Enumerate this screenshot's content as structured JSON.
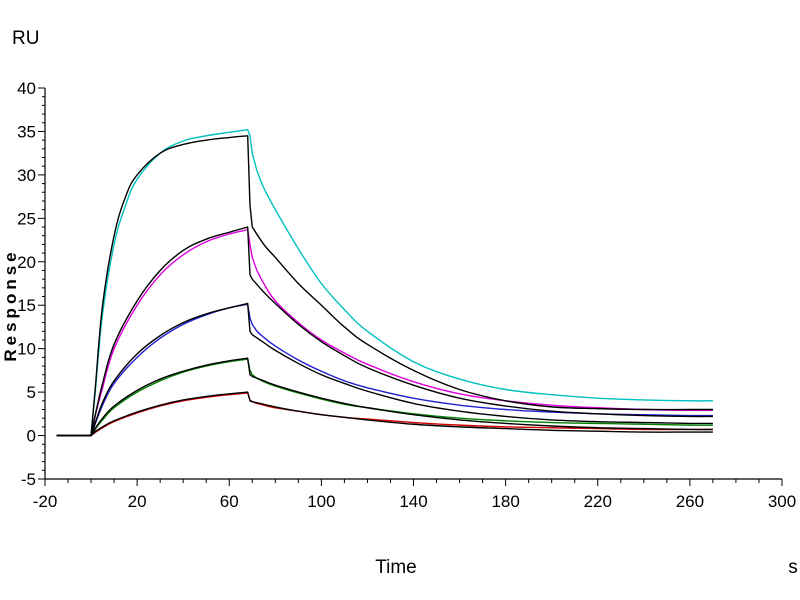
{
  "chart_data": {
    "type": "line",
    "title": "",
    "xlabel": "Time",
    "x_unit": "s",
    "ylabel": "Response",
    "y_unit": "RU",
    "xlim": [
      -20,
      300
    ],
    "ylim": [
      -5,
      40
    ],
    "x_ticks": [
      "-20",
      "20",
      "60",
      "100",
      "140",
      "180",
      "220",
      "260",
      "300"
    ],
    "y_ticks": [
      "-5",
      "0",
      "5",
      "10",
      "15",
      "20",
      "25",
      "30",
      "35",
      "40"
    ],
    "grid": false,
    "legend": "none",
    "series": [
      {
        "color": "#00c0c0",
        "role": "measured",
        "x": [
          -15,
          0,
          2,
          5,
          10,
          15,
          20,
          30,
          40,
          50,
          60,
          68,
          69,
          70,
          72,
          75,
          80,
          90,
          100,
          110,
          120,
          140,
          160,
          180,
          200,
          220,
          240,
          260,
          270
        ],
        "y": [
          0,
          0,
          5.5,
          14,
          22,
          26.5,
          29.5,
          32.5,
          33.9,
          34.5,
          34.9,
          35.2,
          34.5,
          32.5,
          30.5,
          28.5,
          26,
          21.5,
          17.5,
          14.5,
          12,
          8.5,
          6.5,
          5.3,
          4.7,
          4.3,
          4.1,
          4,
          4
        ]
      },
      {
        "color": "#000000",
        "role": "fit",
        "x": [
          -15,
          0,
          2,
          5,
          10,
          15,
          20,
          30,
          40,
          50,
          60,
          68,
          69,
          70,
          75,
          80,
          90,
          100,
          110,
          120,
          140,
          160,
          180,
          200,
          220,
          240,
          260,
          270
        ],
        "y": [
          0,
          0,
          6,
          15,
          23,
          27.5,
          30,
          32.5,
          33.5,
          34,
          34.3,
          34.5,
          26.5,
          24,
          22,
          20.5,
          17.5,
          15,
          12.5,
          10.5,
          7.5,
          5.3,
          4,
          3.3,
          3.1,
          3,
          3,
          3
        ]
      },
      {
        "color": "#e000e0",
        "role": "measured",
        "x": [
          -15,
          0,
          2,
          5,
          10,
          20,
          30,
          40,
          50,
          60,
          68,
          69,
          70,
          72,
          75,
          80,
          90,
          100,
          110,
          120,
          140,
          160,
          180,
          200,
          220,
          240,
          260,
          270
        ],
        "y": [
          0,
          0,
          2.5,
          5.5,
          10,
          15,
          18.5,
          20.8,
          22.3,
          23.2,
          23.7,
          22,
          20.5,
          19,
          17.5,
          15.5,
          13,
          11,
          9.5,
          8.2,
          6.2,
          4.8,
          4,
          3.5,
          3.2,
          3,
          2.9,
          2.9
        ]
      },
      {
        "color": "#000000",
        "role": "fit",
        "x": [
          -15,
          0,
          2,
          5,
          10,
          20,
          30,
          40,
          50,
          60,
          68,
          69,
          70,
          75,
          80,
          90,
          100,
          110,
          120,
          140,
          160,
          180,
          200,
          220,
          240,
          260,
          270
        ],
        "y": [
          0,
          0,
          2.6,
          6,
          10.5,
          15.5,
          19,
          21.3,
          22.6,
          23.4,
          24,
          18.5,
          18,
          16.5,
          15.2,
          12.8,
          10.8,
          9.2,
          7.8,
          5.8,
          4.3,
          3.4,
          2.8,
          2.5,
          2.3,
          2.2,
          2.2
        ]
      },
      {
        "color": "#2020d0",
        "role": "measured",
        "x": [
          -15,
          0,
          2,
          5,
          10,
          20,
          30,
          40,
          50,
          60,
          68,
          69,
          70,
          72,
          75,
          80,
          90,
          100,
          110,
          120,
          140,
          160,
          180,
          200,
          220,
          240,
          260,
          270
        ],
        "y": [
          0,
          0,
          1.5,
          3.5,
          6,
          9,
          11.2,
          12.8,
          13.9,
          14.7,
          15.1,
          13.5,
          12.8,
          12,
          11.3,
          10.3,
          8.7,
          7.4,
          6.3,
          5.5,
          4.3,
          3.5,
          3,
          2.7,
          2.5,
          2.4,
          2.3,
          2.3
        ]
      },
      {
        "color": "#000000",
        "role": "fit",
        "x": [
          -15,
          0,
          2,
          5,
          10,
          20,
          30,
          40,
          50,
          60,
          68,
          69,
          70,
          75,
          80,
          90,
          100,
          110,
          120,
          140,
          160,
          180,
          200,
          220,
          240,
          260,
          270
        ],
        "y": [
          0,
          0,
          1.6,
          3.8,
          6.3,
          9.4,
          11.5,
          13,
          14,
          14.7,
          15.2,
          12,
          11.6,
          10.7,
          9.8,
          8.3,
          7,
          6,
          5.1,
          3.7,
          2.8,
          2.2,
          1.8,
          1.6,
          1.5,
          1.4,
          1.4
        ]
      },
      {
        "color": "#008000",
        "role": "measured",
        "x": [
          -15,
          0,
          2,
          5,
          10,
          20,
          30,
          40,
          50,
          60,
          68,
          69,
          70,
          72,
          75,
          80,
          90,
          100,
          110,
          120,
          140,
          160,
          180,
          200,
          220,
          240,
          260,
          270
        ],
        "y": [
          0,
          0,
          0.8,
          1.8,
          3.2,
          5,
          6.3,
          7.3,
          8,
          8.5,
          8.8,
          7.5,
          7,
          6.6,
          6.2,
          5.7,
          4.9,
          4.2,
          3.6,
          3.2,
          2.5,
          2,
          1.7,
          1.5,
          1.4,
          1.3,
          1.2,
          1.2
        ]
      },
      {
        "color": "#000000",
        "role": "fit",
        "x": [
          -15,
          0,
          2,
          5,
          10,
          20,
          30,
          40,
          50,
          60,
          68,
          69,
          70,
          75,
          80,
          90,
          100,
          110,
          120,
          140,
          160,
          180,
          200,
          220,
          240,
          260,
          270
        ],
        "y": [
          0,
          0,
          0.9,
          2,
          3.4,
          5.2,
          6.5,
          7.4,
          8.1,
          8.6,
          8.9,
          7,
          6.8,
          6.3,
          5.8,
          5,
          4.3,
          3.7,
          3.2,
          2.4,
          1.8,
          1.4,
          1.1,
          0.9,
          0.8,
          0.7,
          0.7
        ]
      },
      {
        "color": "#d00000",
        "role": "measured",
        "x": [
          -15,
          0,
          2,
          5,
          10,
          20,
          30,
          40,
          50,
          60,
          68,
          69,
          70,
          72,
          75,
          80,
          90,
          100,
          110,
          120,
          140,
          160,
          180,
          200,
          220,
          240,
          260,
          270
        ],
        "y": [
          0,
          0,
          0.4,
          0.9,
          1.6,
          2.6,
          3.4,
          4,
          4.4,
          4.7,
          4.9,
          4.1,
          3.9,
          3.7,
          3.5,
          3.2,
          2.8,
          2.4,
          2.1,
          1.9,
          1.5,
          1.2,
          1,
          0.9,
          0.8,
          0.7,
          0.7,
          0.7
        ]
      },
      {
        "color": "#000000",
        "role": "fit",
        "x": [
          -15,
          0,
          2,
          5,
          10,
          20,
          30,
          40,
          50,
          60,
          68,
          69,
          70,
          75,
          80,
          90,
          100,
          110,
          120,
          140,
          160,
          180,
          200,
          220,
          240,
          260,
          270
        ],
        "y": [
          0,
          0,
          0.5,
          1,
          1.7,
          2.7,
          3.5,
          4.1,
          4.5,
          4.8,
          5,
          4,
          3.9,
          3.6,
          3.3,
          2.8,
          2.4,
          2.1,
          1.8,
          1.3,
          1,
          0.8,
          0.6,
          0.5,
          0.4,
          0.4,
          0.4
        ]
      }
    ]
  }
}
